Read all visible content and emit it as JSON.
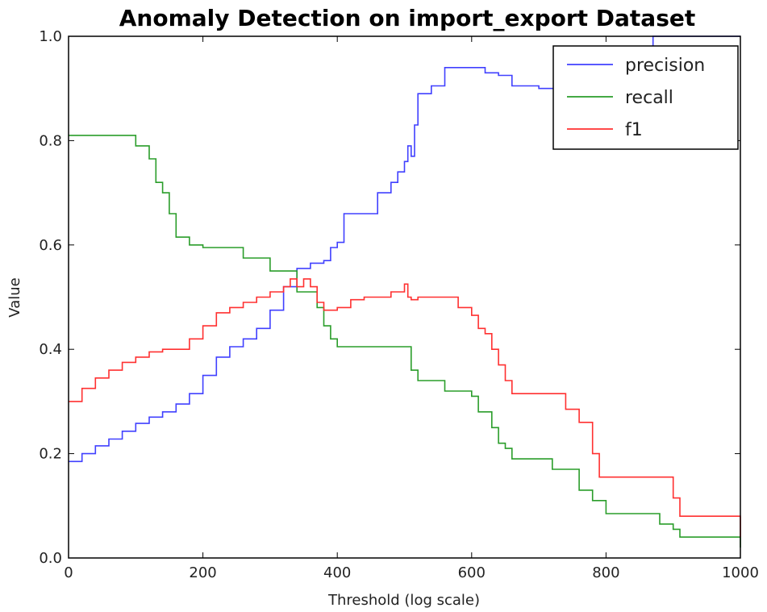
{
  "chart_data": {
    "type": "line",
    "title": "Anomaly Detection on import_export Dataset",
    "xlabel": "Threshold (log scale)",
    "ylabel": "Value",
    "xlim": [
      0,
      1000
    ],
    "ylim": [
      0.0,
      1.0
    ],
    "xticks": [
      0,
      200,
      400,
      600,
      800,
      1000
    ],
    "yticks": [
      0.0,
      0.2,
      0.4,
      0.6,
      0.8,
      1.0
    ],
    "xtick_labels": [
      "0",
      "200",
      "400",
      "600",
      "800",
      "1000"
    ],
    "ytick_labels": [
      "0.0",
      "0.2",
      "0.4",
      "0.6",
      "0.8",
      "1.0"
    ],
    "legend_position": "top-right",
    "grid": false,
    "series": [
      {
        "name": "precision",
        "color": "#4040ff",
        "x": [
          0,
          20,
          40,
          60,
          80,
          100,
          120,
          140,
          160,
          180,
          200,
          220,
          240,
          260,
          280,
          300,
          320,
          340,
          360,
          380,
          390,
          400,
          410,
          430,
          450,
          460,
          470,
          480,
          490,
          500,
          505,
          510,
          515,
          520,
          530,
          540,
          560,
          600,
          620,
          640,
          660,
          700,
          740,
          780,
          820,
          860,
          870,
          900,
          950,
          1000
        ],
        "y": [
          0.185,
          0.2,
          0.215,
          0.228,
          0.243,
          0.258,
          0.27,
          0.28,
          0.295,
          0.315,
          0.35,
          0.385,
          0.405,
          0.42,
          0.44,
          0.475,
          0.52,
          0.555,
          0.565,
          0.57,
          0.595,
          0.605,
          0.66,
          0.66,
          0.66,
          0.7,
          0.7,
          0.72,
          0.74,
          0.76,
          0.79,
          0.77,
          0.83,
          0.89,
          0.89,
          0.905,
          0.94,
          0.94,
          0.93,
          0.925,
          0.905,
          0.9,
          0.9,
          0.9,
          0.9,
          0.9,
          1.0,
          1.0,
          1.0,
          1.0
        ]
      },
      {
        "name": "recall",
        "color": "#2a9d2a",
        "x": [
          0,
          40,
          80,
          100,
          110,
          120,
          130,
          140,
          150,
          160,
          180,
          200,
          220,
          240,
          260,
          280,
          300,
          320,
          340,
          360,
          370,
          380,
          390,
          400,
          420,
          460,
          500,
          510,
          520,
          540,
          560,
          580,
          600,
          610,
          630,
          640,
          650,
          660,
          680,
          700,
          720,
          740,
          760,
          780,
          800,
          820,
          840,
          880,
          900,
          910,
          950,
          990,
          1000
        ],
        "y": [
          0.81,
          0.81,
          0.81,
          0.79,
          0.79,
          0.765,
          0.72,
          0.7,
          0.66,
          0.615,
          0.6,
          0.595,
          0.595,
          0.595,
          0.575,
          0.575,
          0.55,
          0.55,
          0.51,
          0.51,
          0.48,
          0.445,
          0.42,
          0.405,
          0.405,
          0.405,
          0.405,
          0.36,
          0.34,
          0.34,
          0.32,
          0.32,
          0.31,
          0.28,
          0.25,
          0.22,
          0.21,
          0.19,
          0.19,
          0.19,
          0.17,
          0.17,
          0.13,
          0.11,
          0.085,
          0.085,
          0.085,
          0.065,
          0.055,
          0.04,
          0.04,
          0.04,
          0.02
        ]
      },
      {
        "name": "f1",
        "color": "#ff3030",
        "x": [
          0,
          20,
          40,
          60,
          80,
          100,
          120,
          140,
          160,
          180,
          200,
          220,
          240,
          260,
          280,
          300,
          320,
          330,
          340,
          350,
          360,
          370,
          380,
          400,
          420,
          440,
          460,
          480,
          500,
          505,
          510,
          520,
          540,
          560,
          580,
          600,
          610,
          620,
          630,
          640,
          650,
          660,
          680,
          700,
          740,
          760,
          780,
          790,
          800,
          820,
          850,
          880,
          900,
          910,
          940,
          990,
          1000
        ],
        "y": [
          0.3,
          0.325,
          0.345,
          0.36,
          0.375,
          0.385,
          0.395,
          0.4,
          0.4,
          0.42,
          0.445,
          0.47,
          0.48,
          0.49,
          0.5,
          0.51,
          0.52,
          0.535,
          0.52,
          0.535,
          0.52,
          0.49,
          0.475,
          0.48,
          0.495,
          0.5,
          0.5,
          0.51,
          0.525,
          0.5,
          0.495,
          0.5,
          0.5,
          0.5,
          0.48,
          0.465,
          0.44,
          0.43,
          0.4,
          0.37,
          0.34,
          0.315,
          0.315,
          0.315,
          0.285,
          0.26,
          0.2,
          0.155,
          0.155,
          0.155,
          0.155,
          0.155,
          0.115,
          0.08,
          0.08,
          0.08,
          0.04
        ]
      }
    ]
  }
}
